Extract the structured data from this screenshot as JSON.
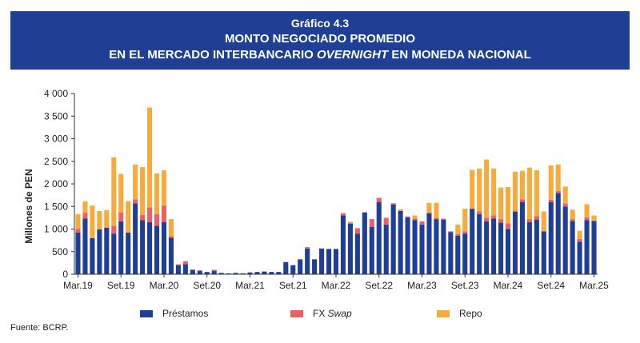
{
  "header": {
    "chart_number": "Gráfico 4.3",
    "title_line1": "MONTO NEGOCIADO PROMEDIO",
    "title_line2_pre": "EN EL MERCADO INTERBANCARIO ",
    "title_line2_italic": "OVERNIGHT",
    "title_line2_post": " EN MONEDA NACIONAL"
  },
  "colors": {
    "prestamos": "#1f3f95",
    "fxswap": "#ec5f64",
    "repo": "#f7ab3b",
    "axis": "#333333"
  },
  "legend": {
    "prestamos": "Préstamos",
    "fxswap_pre": "FX ",
    "fxswap_italic": "Swap",
    "repo": "Repo"
  },
  "source": "Fuente: BCRP.",
  "chart_data": {
    "type": "bar",
    "stacked": true,
    "title": "",
    "xlabel": "",
    "ylabel": "Millones de PEN",
    "ylim": [
      0,
      4000
    ],
    "yticks": [
      0,
      500,
      1000,
      1500,
      2000,
      2500,
      3000,
      3500,
      4000
    ],
    "ytick_labels": [
      "0",
      "500",
      "1 000",
      "1 500",
      "2 000",
      "2 500",
      "3 000",
      "3 500",
      "4 000"
    ],
    "x_tick_labels": [
      {
        "index": 0,
        "label": "Mar.19"
      },
      {
        "index": 6,
        "label": "Set.19"
      },
      {
        "index": 12,
        "label": "Mar.20"
      },
      {
        "index": 18,
        "label": "Set.20"
      },
      {
        "index": 24,
        "label": "Mar.21"
      },
      {
        "index": 30,
        "label": "Set.21"
      },
      {
        "index": 36,
        "label": "Mar.22"
      },
      {
        "index": 42,
        "label": "Set.22"
      },
      {
        "index": 48,
        "label": "Mar.23"
      },
      {
        "index": 54,
        "label": "Set.23"
      },
      {
        "index": 60,
        "label": "Mar.24"
      },
      {
        "index": 66,
        "label": "Set.24"
      },
      {
        "index": 72,
        "label": "Mar.25"
      }
    ],
    "series": [
      {
        "name": "Préstamos",
        "values": [
          920,
          1230,
          800,
          990,
          1030,
          900,
          1170,
          920,
          1570,
          1200,
          1150,
          1070,
          1150,
          810,
          200,
          220,
          100,
          70,
          50,
          70,
          30,
          20,
          30,
          20,
          40,
          50,
          60,
          50,
          50,
          270,
          200,
          330,
          570,
          330,
          570,
          560,
          560,
          1300,
          1120,
          900,
          1370,
          1050,
          1600,
          1100,
          1540,
          1400,
          1260,
          1200,
          1100,
          1350,
          1220,
          1210,
          930,
          850,
          900,
          1450,
          1330,
          1170,
          1230,
          1140,
          1000,
          1380,
          1600,
          1150,
          1210,
          950,
          1600,
          1800,
          1500,
          1180,
          720,
          1200,
          1180
        ]
      },
      {
        "name": "FX Swap",
        "values": [
          80,
          130,
          0,
          10,
          10,
          170,
          200,
          0,
          90,
          110,
          330,
          260,
          370,
          30,
          20,
          70,
          0,
          20,
          0,
          30,
          0,
          0,
          0,
          0,
          0,
          0,
          0,
          0,
          0,
          0,
          0,
          0,
          30,
          0,
          0,
          0,
          0,
          50,
          20,
          120,
          0,
          170,
          90,
          150,
          30,
          10,
          20,
          30,
          70,
          20,
          30,
          20,
          20,
          40,
          50,
          0,
          60,
          80,
          70,
          80,
          130,
          30,
          60,
          70,
          80,
          0,
          50,
          40,
          70,
          40,
          60,
          60,
          10
        ]
      },
      {
        "name": "Repo",
        "values": [
          330,
          250,
          720,
          400,
          380,
          1520,
          850,
          700,
          770,
          1060,
          2210,
          900,
          780,
          380,
          0,
          0,
          0,
          0,
          0,
          0,
          0,
          0,
          0,
          0,
          0,
          0,
          0,
          0,
          0,
          0,
          0,
          0,
          0,
          0,
          0,
          0,
          0,
          0,
          20,
          0,
          0,
          0,
          0,
          0,
          0,
          30,
          0,
          70,
          0,
          210,
          330,
          0,
          0,
          210,
          500,
          860,
          950,
          1290,
          1040,
          700,
          800,
          860,
          630,
          1140,
          1010,
          440,
          760,
          590,
          370,
          210,
          180,
          290,
          110
        ]
      }
    ]
  }
}
